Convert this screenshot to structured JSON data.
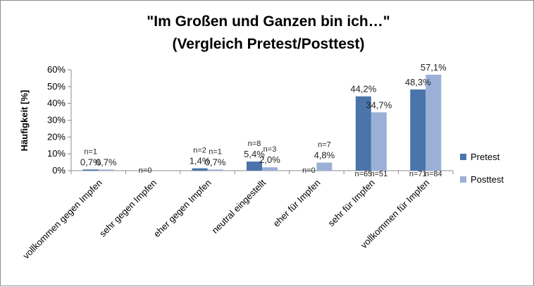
{
  "chart_data": {
    "type": "bar",
    "title_line1": "\"Im Großen und Ganzen bin ich…\"",
    "title_line2": "(Vergleich Pretest/Posttest)",
    "ylabel": "Häufigkeit [%]",
    "ylim": [
      0,
      60
    ],
    "yticks": [
      "0%",
      "10%",
      "20%",
      "30%",
      "40%",
      "50%",
      "60%"
    ],
    "categories": [
      "vollkommen gegen Impfen",
      "sehr gegen Impfen",
      "eher gegen Impfen",
      "neutral eingestellt",
      "eher für Impfen",
      "sehr für Impfen",
      "vollkommen für Impfen"
    ],
    "series": [
      {
        "name": "Pretest",
        "color": "#4a74aa",
        "values": [
          0.7,
          0,
          1.4,
          5.4,
          0,
          44.2,
          48.3
        ],
        "labels": [
          "0,7%",
          "",
          "1,4%",
          "5,4%",
          "",
          "44,2%",
          "48,3%"
        ],
        "n": [
          "n=1",
          "n=0",
          "n=2",
          "n=8",
          "n=0",
          "n=65",
          "n=71"
        ]
      },
      {
        "name": "Posttest",
        "color": "#9bb0d6",
        "values": [
          0.7,
          0,
          0.7,
          2.0,
          4.8,
          34.7,
          57.1
        ],
        "labels": [
          "0,7%",
          "",
          "0,7%",
          "2,0%",
          "4,8%",
          "34,7%",
          "57,1%"
        ],
        "n": [
          "",
          "",
          "n=1",
          "n=3",
          "n=7",
          "n=51",
          "n=84"
        ]
      }
    ],
    "legend_position": "right",
    "grid": false
  }
}
